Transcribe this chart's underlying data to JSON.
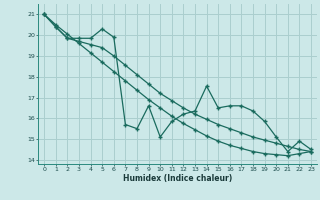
{
  "xlabel": "Humidex (Indice chaleur)",
  "background_color": "#cce8e8",
  "grid_color": "#aacece",
  "line_color": "#1a6b5e",
  "xlim": [
    -0.5,
    23.5
  ],
  "ylim": [
    13.8,
    21.5
  ],
  "yticks": [
    14,
    15,
    16,
    17,
    18,
    19,
    20,
    21
  ],
  "xticks": [
    0,
    1,
    2,
    3,
    4,
    5,
    6,
    7,
    8,
    9,
    10,
    11,
    12,
    13,
    14,
    15,
    16,
    17,
    18,
    19,
    20,
    21,
    22,
    23
  ],
  "series1_x": [
    0,
    1,
    2,
    3,
    4,
    5,
    6,
    7,
    8,
    9,
    10,
    11,
    12,
    13,
    14,
    15,
    16,
    17,
    18,
    19,
    20,
    21,
    22,
    23
  ],
  "series1_y": [
    21.0,
    20.4,
    19.85,
    19.85,
    19.85,
    20.3,
    19.9,
    15.7,
    15.5,
    16.6,
    15.1,
    15.85,
    16.2,
    16.35,
    17.55,
    16.5,
    16.6,
    16.6,
    16.35,
    15.85,
    15.1,
    14.4,
    14.9,
    14.5
  ],
  "series2_x": [
    0,
    1,
    2,
    3,
    4,
    5,
    6,
    7,
    8,
    9,
    10,
    11,
    12,
    13,
    14,
    15,
    16,
    17,
    18,
    19,
    20,
    21,
    22,
    23
  ],
  "series2_y": [
    21.0,
    20.5,
    20.05,
    19.6,
    19.15,
    18.7,
    18.25,
    17.8,
    17.35,
    16.9,
    16.5,
    16.1,
    15.75,
    15.45,
    15.15,
    14.9,
    14.7,
    14.55,
    14.4,
    14.3,
    14.25,
    14.2,
    14.3,
    14.4
  ],
  "series3_x": [
    0,
    1,
    2,
    3,
    4,
    5,
    6,
    7,
    8,
    9,
    10,
    11,
    12,
    13,
    14,
    15,
    16,
    17,
    18,
    19,
    20,
    21,
    22,
    23
  ],
  "series3_y": [
    21.0,
    20.4,
    19.85,
    19.7,
    19.55,
    19.4,
    19.0,
    18.55,
    18.1,
    17.65,
    17.2,
    16.85,
    16.5,
    16.2,
    15.95,
    15.7,
    15.5,
    15.3,
    15.1,
    14.95,
    14.8,
    14.65,
    14.5,
    14.4
  ]
}
